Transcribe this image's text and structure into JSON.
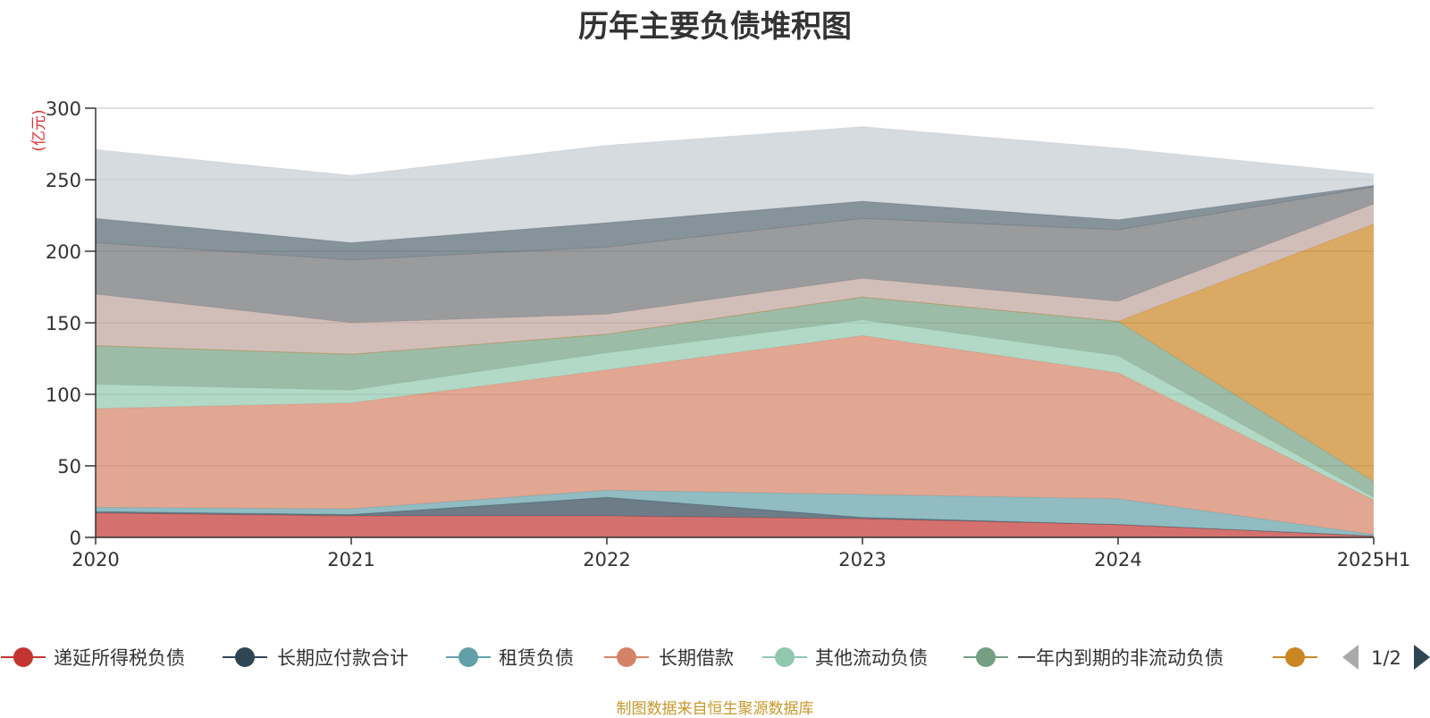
{
  "chart_data": {
    "type": "area",
    "stacked": true,
    "title": "历年主要负债堆积图",
    "unit_label": "(亿元)",
    "categories": [
      "2020",
      "2021",
      "2022",
      "2023",
      "2024",
      "2025H1"
    ],
    "ylim": [
      0,
      300
    ],
    "yticks": [
      0,
      50,
      100,
      150,
      200,
      250,
      300
    ],
    "grid": true,
    "legend_position": "bottom",
    "series": [
      {
        "name": "递延所得税负债",
        "color": "#c23531",
        "values": [
          17,
          15,
          15,
          13,
          9,
          1
        ]
      },
      {
        "name": "长期应付款合计",
        "color": "#2f4554",
        "values": [
          1,
          1,
          13,
          1,
          0,
          0
        ]
      },
      {
        "name": "租赁负债",
        "color": "#61a0a8",
        "values": [
          3,
          4,
          5,
          16,
          18,
          1
        ]
      },
      {
        "name": "长期借款",
        "color": "#d48265",
        "values": [
          69,
          74,
          84,
          111,
          88,
          24
        ]
      },
      {
        "name": "其他流动负债",
        "color": "#91c7ae",
        "values": [
          17,
          9,
          12,
          11,
          12,
          2
        ]
      },
      {
        "name": "一年内到期的非流动负债",
        "color": "#749f83",
        "values": [
          27,
          25,
          13,
          16,
          24,
          11
        ]
      },
      {
        "name": "",
        "color": "#ca8622",
        "values": [
          0,
          0,
          0,
          0,
          0,
          180
        ]
      },
      {
        "name": "",
        "color": "#bda29a",
        "values": [
          36,
          22,
          14,
          13,
          14,
          14
        ]
      },
      {
        "name": "",
        "color": "#6e7074",
        "values": [
          36,
          44,
          47,
          42,
          50,
          12
        ]
      },
      {
        "name": "",
        "color": "#546570",
        "values": [
          17,
          12,
          17,
          12,
          7,
          1
        ]
      },
      {
        "name": "",
        "color": "#c4ccd3",
        "values": [
          48,
          47,
          54,
          52,
          50,
          8
        ]
      }
    ],
    "legend_visible_count": 7
  },
  "legend": {
    "page_indicator": "1/2"
  },
  "source_note": "制图数据来自恒生聚源数据库"
}
